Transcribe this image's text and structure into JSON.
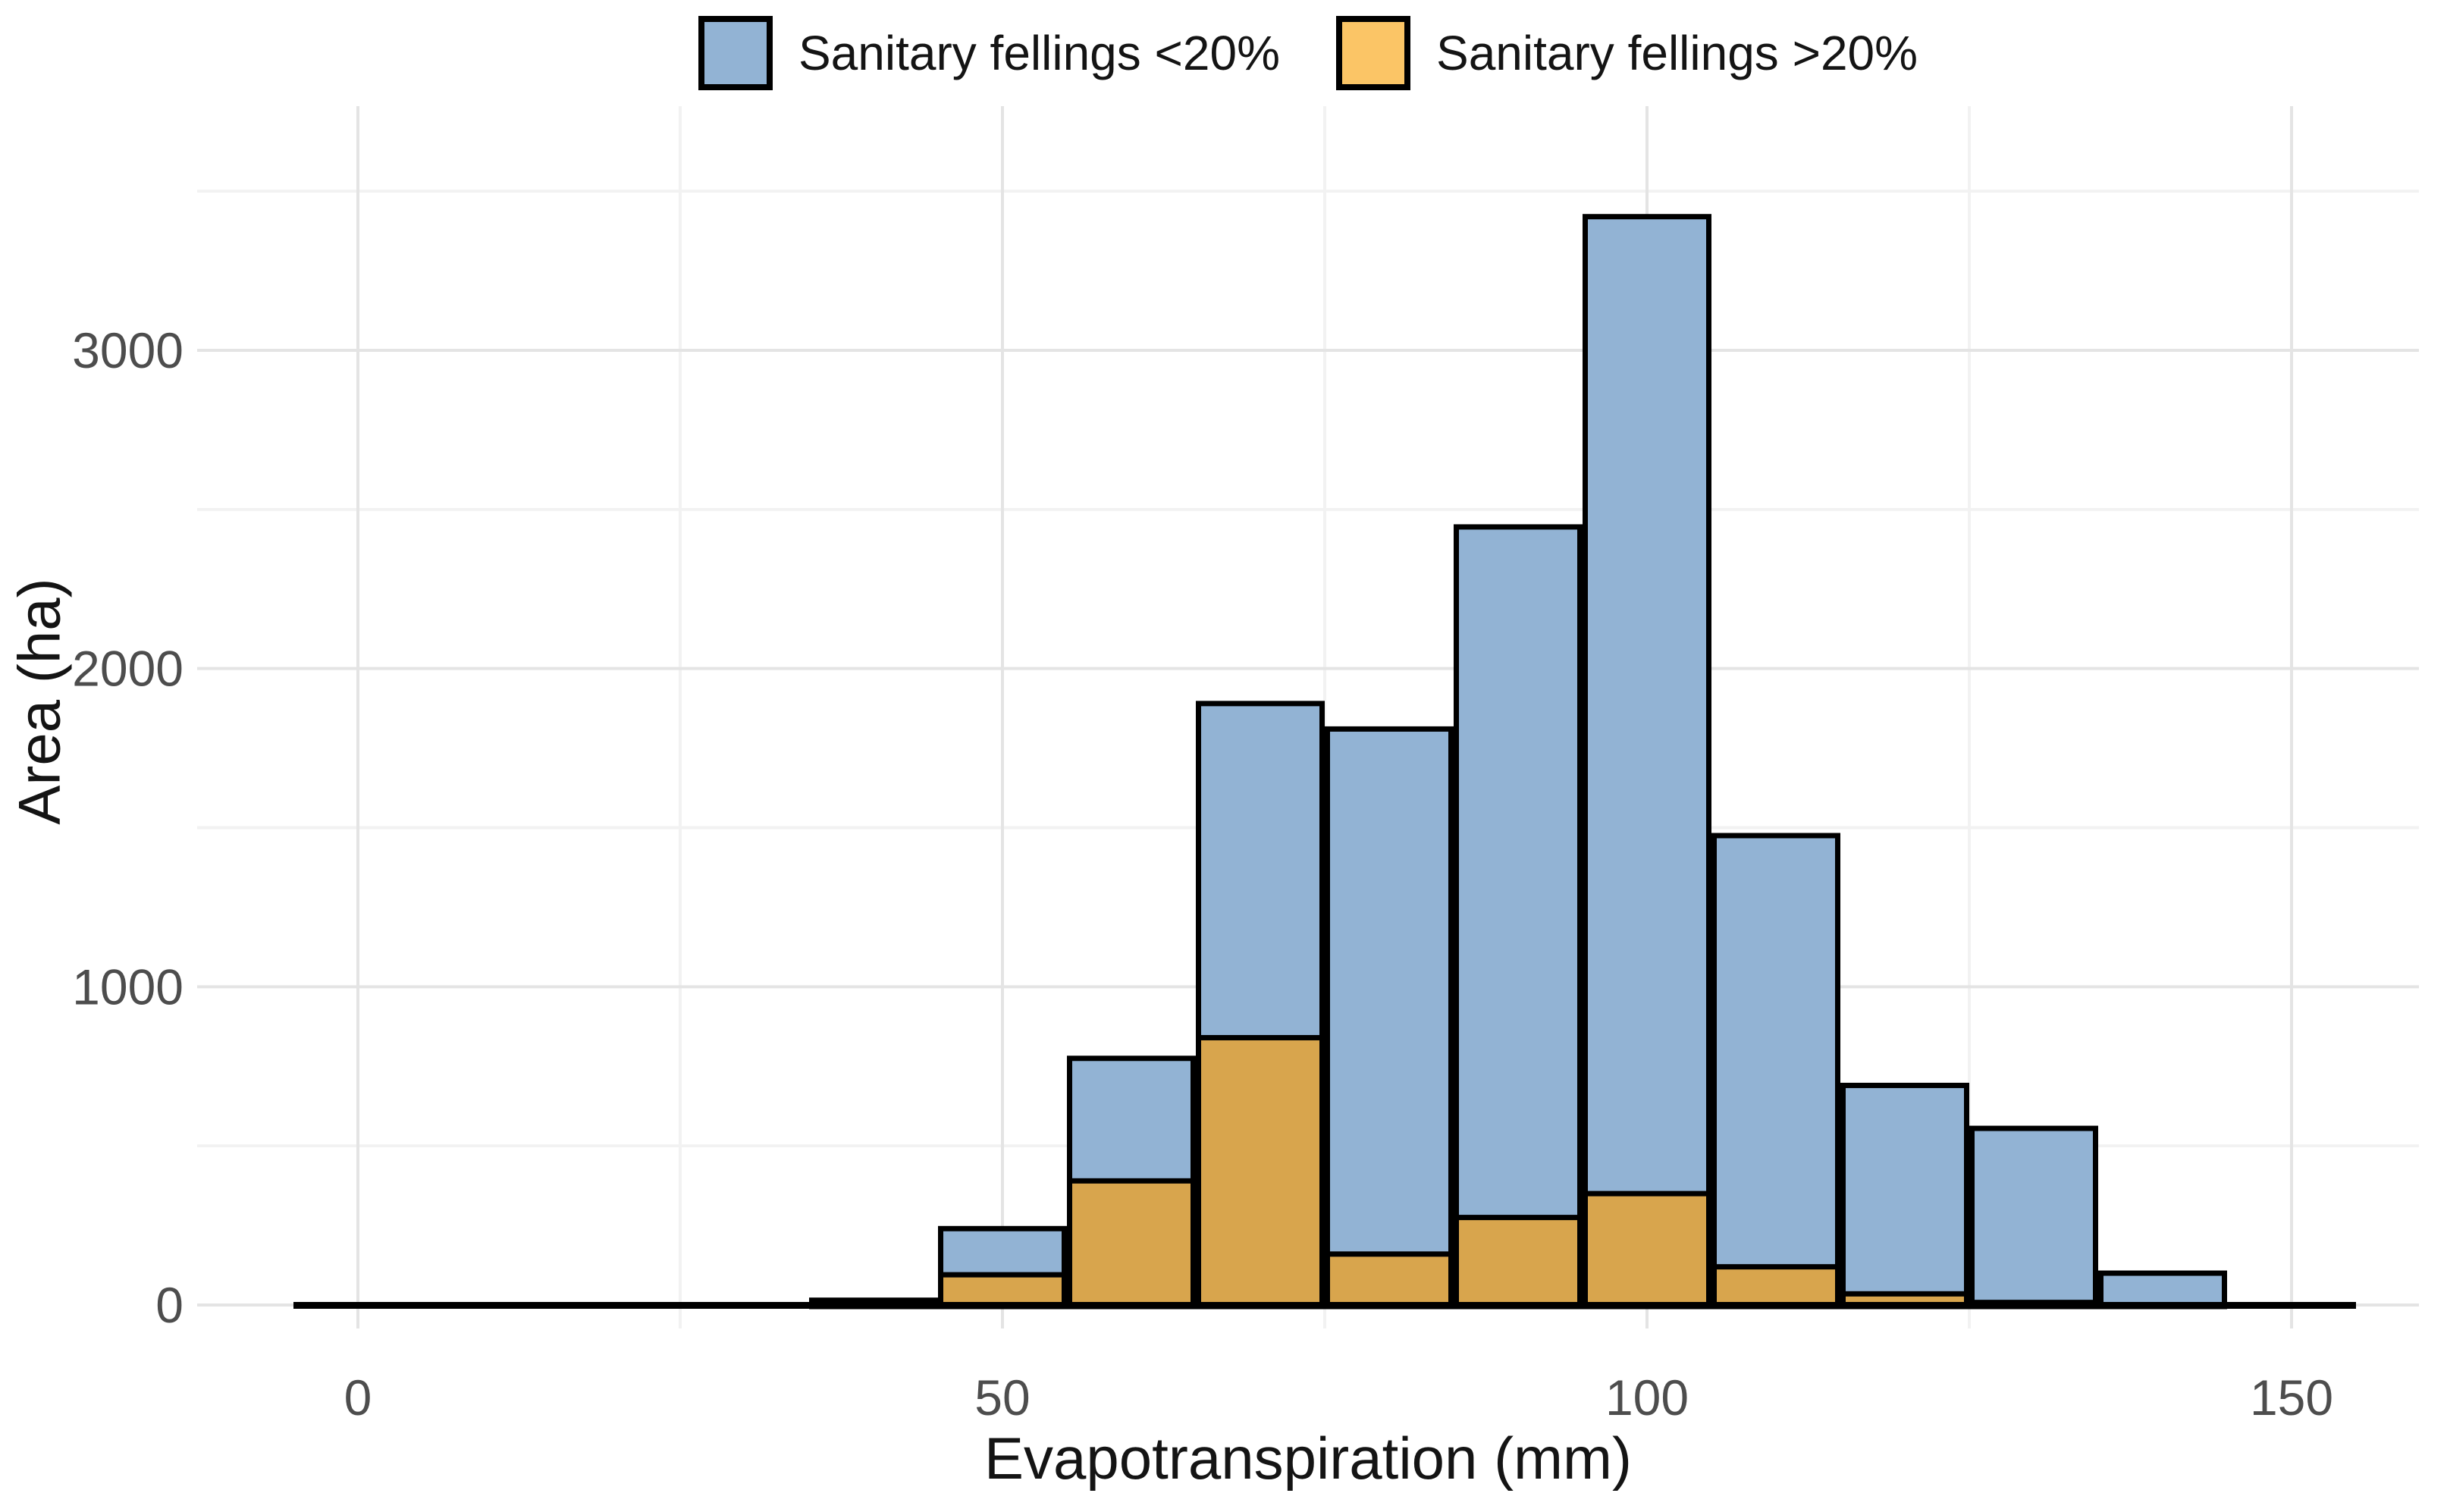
{
  "chart_data": {
    "type": "bar",
    "subtype": "overlaid-histogram",
    "title": "",
    "xlabel": "Evapotranspiration (mm)",
    "ylabel": "Area (ha)",
    "legend_position": "top-center",
    "grid": true,
    "xlim": [
      -5,
      155
    ],
    "ylim": [
      0,
      3500
    ],
    "x_ticks": [
      0,
      50,
      100,
      150
    ],
    "x_tick_labels": [
      "0",
      "50",
      "100",
      "150"
    ],
    "x_minor_ticks": [
      25,
      75,
      125
    ],
    "y_ticks": [
      0,
      1000,
      2000,
      3000
    ],
    "y_tick_labels": [
      "0",
      "1000",
      "2000",
      "3000"
    ],
    "y_minor_ticks": [
      500,
      1500,
      2500,
      3500
    ],
    "bin_width": 10,
    "baseline_extent": [
      -5,
      155
    ],
    "series": [
      {
        "key": "under20",
        "name": "Sanitary fellings <20%",
        "bar_fill": "#92B3D4",
        "legend_fill": "#92B3D4"
      },
      {
        "key": "over20",
        "name": "Sanitary fellings >20%",
        "bar_fill": "#D8A54D",
        "legend_fill": "#FBC566"
      }
    ],
    "bins": [
      {
        "x0": 35,
        "x1": 45,
        "under20": 15,
        "over20": 5
      },
      {
        "x0": 45,
        "x1": 55,
        "under20": 240,
        "over20": 95
      },
      {
        "x0": 55,
        "x1": 65,
        "under20": 775,
        "over20": 390
      },
      {
        "x0": 65,
        "x1": 75,
        "under20": 1890,
        "over20": 840
      },
      {
        "x0": 75,
        "x1": 85,
        "under20": 1810,
        "over20": 160
      },
      {
        "x0": 85,
        "x1": 95,
        "under20": 2445,
        "over20": 275
      },
      {
        "x0": 95,
        "x1": 105,
        "under20": 3420,
        "over20": 350
      },
      {
        "x0": 105,
        "x1": 115,
        "under20": 1475,
        "over20": 120
      },
      {
        "x0": 115,
        "x1": 125,
        "under20": 690,
        "over20": 35
      },
      {
        "x0": 125,
        "x1": 135,
        "under20": 555,
        "over20": 8
      },
      {
        "x0": 135,
        "x1": 145,
        "under20": 100,
        "over20": 0
      }
    ],
    "colors": {
      "background": "#FFFFFF",
      "bar_outline": "#000000",
      "grid_major": "#E4E4E4",
      "grid_minor": "#F2F2F2",
      "tick_text": "#4D4D4D",
      "title_text": "#141414"
    }
  }
}
